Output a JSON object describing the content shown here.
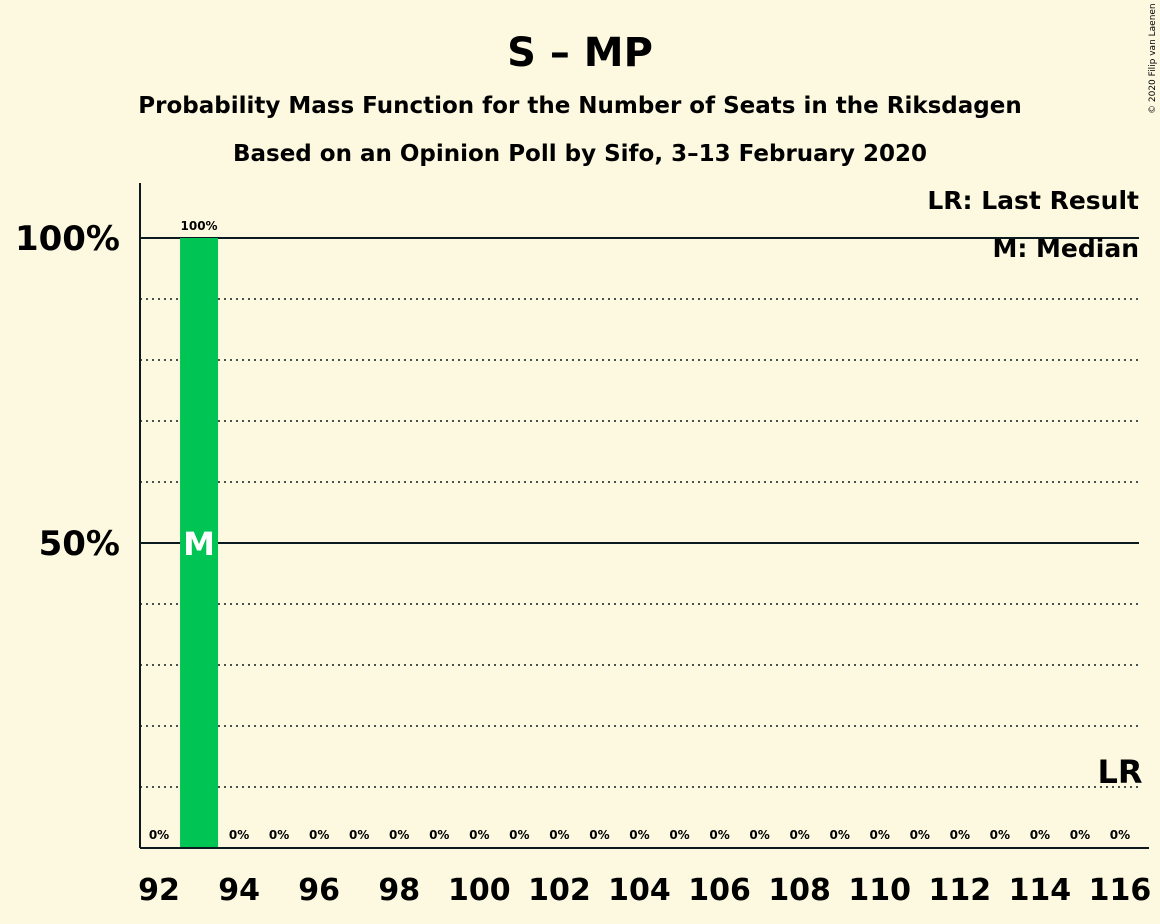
{
  "chart_data": {
    "type": "bar",
    "title": "S – MP",
    "subtitle1": "Probability Mass Function for the Number of Seats in the Riksdagen",
    "subtitle2": "Based on an Opinion Poll by Sifo, 3–13 February 2020",
    "copyright": "© 2020 Filip van Laenen",
    "legend": {
      "lr": "LR: Last Result",
      "median": "M: Median",
      "placement": "top-right"
    },
    "x": [
      92,
      93,
      94,
      95,
      96,
      97,
      98,
      99,
      100,
      101,
      102,
      103,
      104,
      105,
      106,
      107,
      108,
      109,
      110,
      111,
      112,
      113,
      114,
      115,
      116
    ],
    "values": [
      0,
      100,
      0,
      0,
      0,
      0,
      0,
      0,
      0,
      0,
      0,
      0,
      0,
      0,
      0,
      0,
      0,
      0,
      0,
      0,
      0,
      0,
      0,
      0,
      0
    ],
    "value_labels": [
      "0%",
      "100%",
      "0%",
      "0%",
      "0%",
      "0%",
      "0%",
      "0%",
      "0%",
      "0%",
      "0%",
      "0%",
      "0%",
      "0%",
      "0%",
      "0%",
      "0%",
      "0%",
      "0%",
      "0%",
      "0%",
      "0%",
      "0%",
      "0%",
      "0%"
    ],
    "x_ticks": [
      92,
      94,
      96,
      98,
      100,
      102,
      104,
      106,
      108,
      110,
      112,
      114,
      116
    ],
    "y_ticks": [
      {
        "value": 50,
        "label": "50%"
      },
      {
        "value": 100,
        "label": "100%"
      }
    ],
    "ylim": [
      0,
      100
    ],
    "median": {
      "x": 93,
      "marker": "M"
    },
    "last_result": {
      "x": 116,
      "marker": "LR"
    },
    "bar_color": "#00c454",
    "grid": true
  }
}
